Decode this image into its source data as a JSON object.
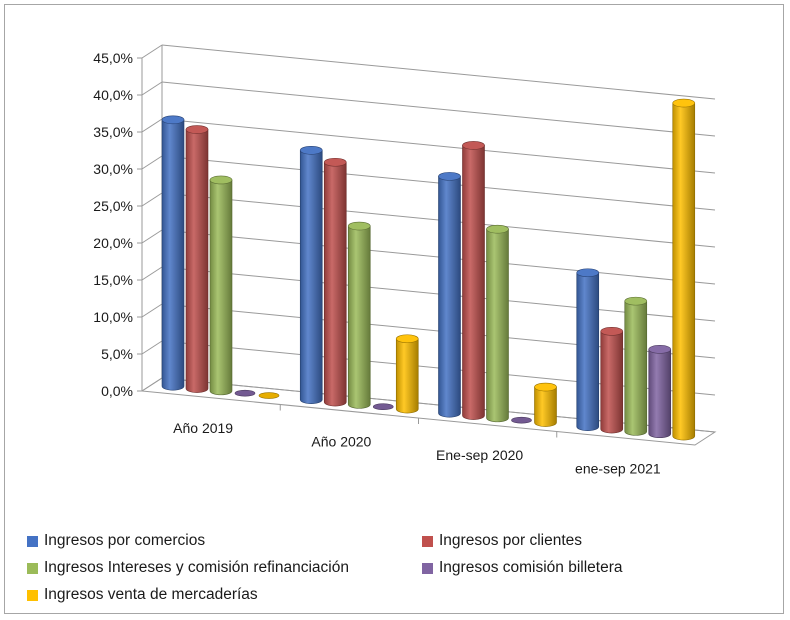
{
  "chart_data": {
    "type": "bar",
    "title": "",
    "xlabel": "",
    "ylabel": "",
    "ylim": [
      0,
      45
    ],
    "yticks": [
      "0,0%",
      "5,0%",
      "10,0%",
      "15,0%",
      "20,0%",
      "25,0%",
      "30,0%",
      "35,0%",
      "40,0%",
      "45,0%"
    ],
    "categories": [
      "Año 2019",
      "Año 2020",
      "Ene-sep 2020",
      "ene-sep 2021"
    ],
    "series": [
      {
        "name": "Ingresos por comercios",
        "values": [
          36.0,
          33.7,
          32.0,
          20.8
        ],
        "color": "#4472c4"
      },
      {
        "name": "Ingresos por clientes",
        "values": [
          35.0,
          32.4,
          36.5,
          13.2
        ],
        "color": "#c0504d"
      },
      {
        "name": "Ingresos Intereses y comisión refinanciación",
        "values": [
          28.5,
          24.1,
          25.5,
          17.6
        ],
        "color": "#9bbb59"
      },
      {
        "name": "Ingresos comisión billetera",
        "values": [
          0.0,
          0.0,
          0.0,
          11.4
        ],
        "color": "#8064a2"
      },
      {
        "name": "Ingresos venta de mercaderías",
        "values": [
          0.0,
          9.5,
          4.8,
          45.0
        ],
        "color": "#ffc000"
      }
    ],
    "grid": true,
    "legend_position": "bottom",
    "style": "3d-cylinder"
  }
}
